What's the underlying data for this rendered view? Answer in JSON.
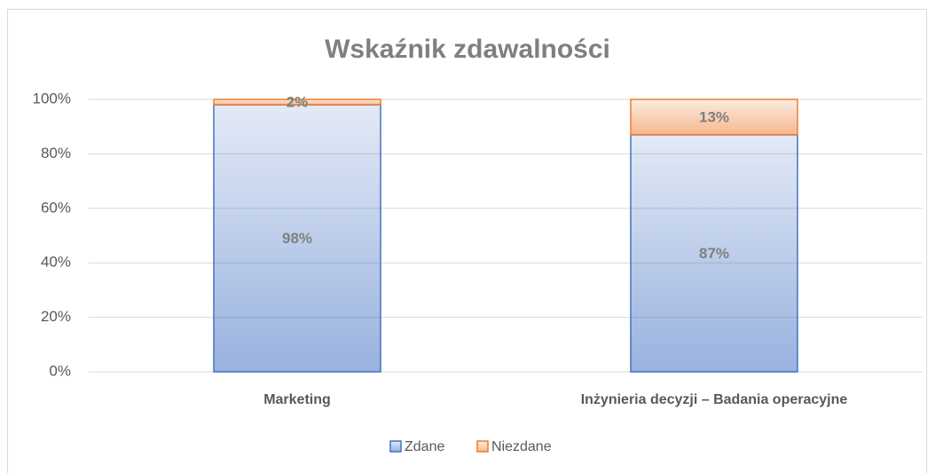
{
  "chart_data": {
    "type": "bar",
    "stacked": true,
    "title": "Wskaźnik zdawalności",
    "categories": [
      "Marketing",
      "Inżynieria decyzji – Badania operacyjne"
    ],
    "series": [
      {
        "name": "Zdane",
        "color": "#4472c4",
        "values": [
          98,
          87
        ],
        "value_labels": [
          "98%",
          "87%"
        ]
      },
      {
        "name": "Niezdane",
        "color": "#ed7d31",
        "values": [
          2,
          13
        ],
        "value_labels": [
          "2%",
          "13%"
        ]
      }
    ],
    "ylim": [
      0,
      100
    ],
    "yticks": [
      {
        "value": 0,
        "label": "0%"
      },
      {
        "value": 20,
        "label": "20%"
      },
      {
        "value": 40,
        "label": "40%"
      },
      {
        "value": 60,
        "label": "60%"
      },
      {
        "value": 80,
        "label": "80%"
      },
      {
        "value": 100,
        "label": "100%"
      }
    ],
    "grid": true,
    "legend": "bottom"
  }
}
